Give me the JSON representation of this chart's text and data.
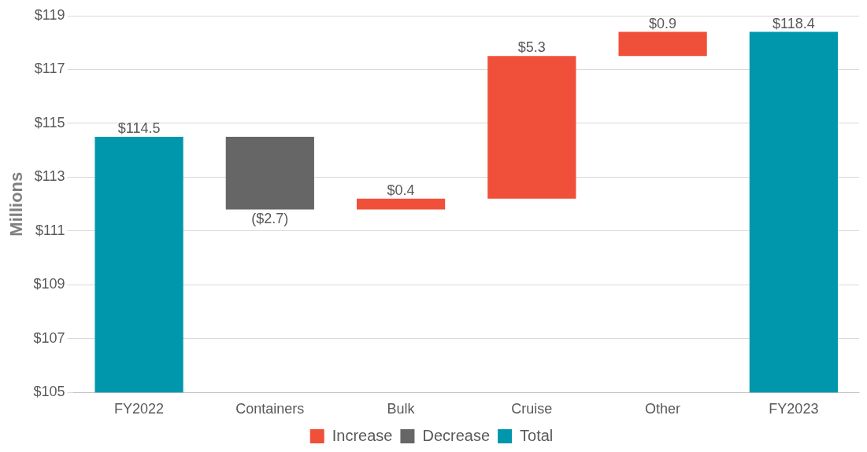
{
  "chart_data": {
    "type": "bar",
    "ylabel": "Millions",
    "categories": [
      "FY2022",
      "Containers",
      "Bulk",
      "Cruise",
      "Other",
      "FY2023"
    ],
    "series": [
      {
        "name": "Increase",
        "color": "#f0503a",
        "base": [
          null,
          null,
          111.8,
          112.2,
          117.5,
          null
        ],
        "values": [
          null,
          null,
          0.4,
          5.3,
          0.9,
          null
        ]
      },
      {
        "name": "Decrease",
        "color": "#666666",
        "base": [
          null,
          114.5,
          null,
          null,
          null,
          null
        ],
        "values": [
          null,
          -2.7,
          null,
          null,
          null,
          null
        ]
      },
      {
        "name": "Total",
        "color": "#0097ad",
        "base": [
          105,
          null,
          null,
          null,
          null,
          105
        ],
        "values": [
          9.5,
          null,
          null,
          null,
          null,
          13.4
        ]
      }
    ],
    "value_labels": [
      "$114.5",
      "($2.7)",
      "$0.4",
      "$5.3",
      "$0.9",
      "$118.4"
    ],
    "ylim": [
      105,
      119
    ],
    "yticks": [
      {
        "value": 105,
        "label": "$105"
      },
      {
        "value": 107,
        "label": "$107"
      },
      {
        "value": 109,
        "label": "$109"
      },
      {
        "value": 111,
        "label": "$111"
      },
      {
        "value": 113,
        "label": "$113"
      },
      {
        "value": 115,
        "label": "$115"
      },
      {
        "value": 117,
        "label": "$117"
      },
      {
        "value": 119,
        "label": "$119"
      }
    ],
    "grid": "y",
    "legend": "bottom"
  }
}
